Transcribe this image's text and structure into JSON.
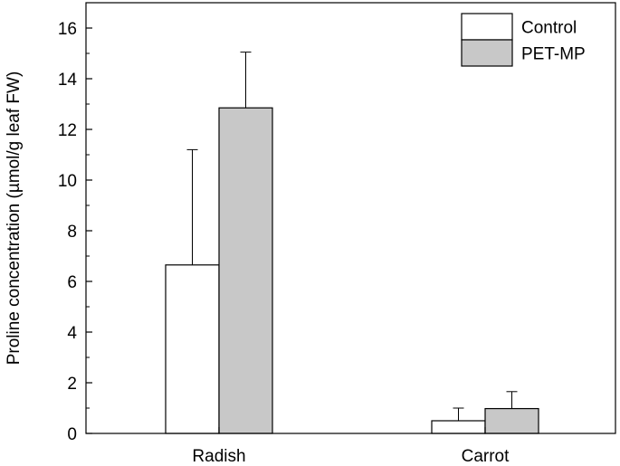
{
  "chart_data": {
    "type": "bar",
    "title": "",
    "xlabel": "",
    "ylabel": "Proline concentration (µmol/g leaf FW)",
    "ylim": [
      0,
      17
    ],
    "yticks": [
      0,
      2,
      4,
      6,
      8,
      10,
      12,
      14,
      16
    ],
    "categories": [
      "Radish",
      "Carrot"
    ],
    "series": [
      {
        "name": "Control",
        "values": [
          6.65,
          0.5
        ],
        "errors": [
          4.55,
          0.5
        ],
        "color": "#ffffff"
      },
      {
        "name": "PET-MP",
        "values": [
          12.85,
          0.98
        ],
        "errors": [
          2.2,
          0.67
        ],
        "color": "#c8c8c8"
      }
    ],
    "grid": false,
    "legend_position": "top-right"
  }
}
